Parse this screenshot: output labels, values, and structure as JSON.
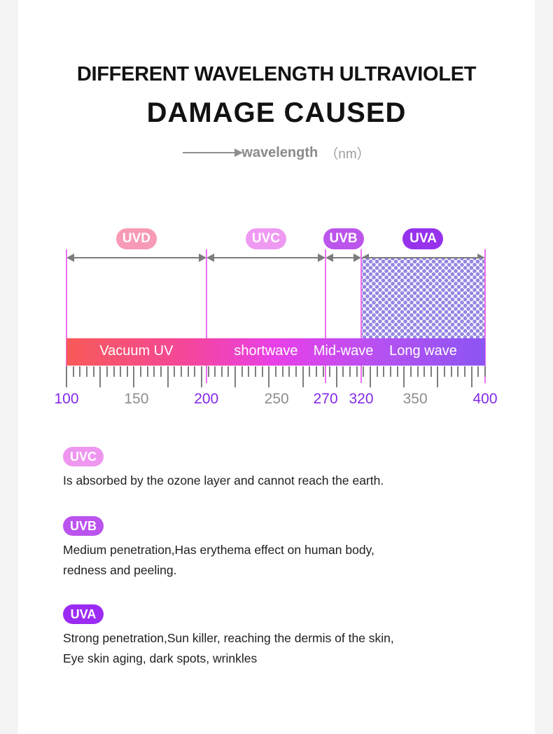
{
  "header": {
    "title_line1": "DIFFERENT WAVELENGTH ULTRAVIOLET",
    "title_line2": "DAMAGE CAUSED",
    "axis_label": "wavelength",
    "axis_unit": "（nm）"
  },
  "spectrum": {
    "bands": [
      {
        "label": "UVD",
        "nm_start": 100,
        "nm_end": 200,
        "badge_color": "#f79ab5",
        "bar_label": "Vacuum UV",
        "hatched": false
      },
      {
        "label": "UVC",
        "nm_start": 200,
        "nm_end": 270,
        "badge_color": "#ef9af2",
        "bar_label": "shortwave",
        "hatched": false
      },
      {
        "label": "UVB",
        "nm_start": 270,
        "nm_end": 320,
        "badge_color": "#bc55ec",
        "bar_label": "Mid-wave",
        "hatched": false
      },
      {
        "label": "UVA",
        "nm_start": 320,
        "nm_end": 400,
        "badge_color": "#9632ec",
        "bar_label": "Long wave",
        "hatched": true
      }
    ],
    "axis_ticks": [
      {
        "label": "100",
        "accent": true
      },
      {
        "label": "150",
        "accent": false
      },
      {
        "label": "200",
        "accent": true
      },
      {
        "label": "250",
        "accent": false
      },
      {
        "label": "270",
        "accent": true
      },
      {
        "label": "320",
        "accent": true
      },
      {
        "label": "350",
        "accent": false
      },
      {
        "label": "400",
        "accent": true
      }
    ],
    "colors": {
      "boundary_line": "#ef70f0",
      "arrow_gray": "#7c7c7c",
      "tick_gray": "#7e7e7e",
      "number_accent": "#8429e8",
      "number_gray": "#8d8d8d",
      "hatch_dot": "#9586e2",
      "bar_gradient": [
        "#f85a58",
        "#f4469e",
        "#e840e8",
        "#b551f2",
        "#8c55f3"
      ]
    }
  },
  "descriptions": [
    {
      "label": "UVC",
      "badge_color": "#ee96f0",
      "lines": [
        "Is absorbed by the ozone layer and cannot reach the earth."
      ]
    },
    {
      "label": "UVB",
      "badge_color": "#bb53ee",
      "lines": [
        "Medium penetration,Has erythema effect on human body,",
        "redness and peeling."
      ]
    },
    {
      "label": "UVA",
      "badge_color": "#9b2bf2",
      "lines": [
        "Strong penetration,Sun killer, reaching the dermis of the skin,",
        "Eye skin aging, dark spots, wrinkles"
      ]
    }
  ]
}
